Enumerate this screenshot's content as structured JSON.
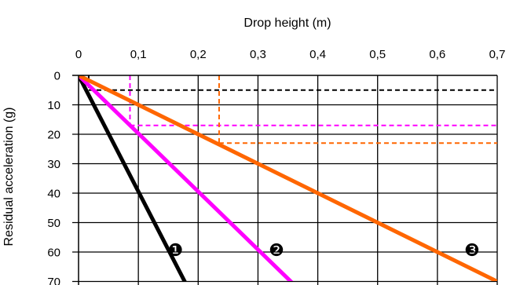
{
  "chart_data": {
    "type": "line",
    "xlabel": "Drop height (m)",
    "ylabel": "Residual acceleration (g)",
    "xlim": [
      0,
      0.7
    ],
    "ylim": [
      0,
      70
    ],
    "y_inverted": true,
    "x_axis_position": "top",
    "grid": true,
    "x_ticks": [
      "0",
      "0,1",
      "0,2",
      "0,3",
      "0,4",
      "0,5",
      "0,6",
      "0,7"
    ],
    "y_ticks": [
      "0",
      "10",
      "20",
      "30",
      "40",
      "50",
      "60",
      "70"
    ],
    "series": [
      {
        "label": "❶",
        "color": "#000000",
        "points": [
          [
            0,
            0
          ],
          [
            0.18,
            71
          ]
        ],
        "label_at": [
          0.162,
          59.2
        ]
      },
      {
        "label": "❷",
        "color": "#ff00ff",
        "points": [
          [
            0,
            0
          ],
          [
            0.36,
            71
          ]
        ],
        "label_at": [
          0.331,
          59.2
        ]
      },
      {
        "label": "❸",
        "color": "#ff6600",
        "points": [
          [
            0,
            0
          ],
          [
            0.7,
            70
          ]
        ],
        "label_at": [
          0.658,
          59.2
        ]
      }
    ],
    "reference_lines": [
      {
        "color": "#000000",
        "x": 0.017,
        "y": 5
      },
      {
        "color": "#ff00ff",
        "x": 0.086,
        "y": 17
      },
      {
        "color": "#ff6600",
        "x": 0.235,
        "y": 23
      }
    ]
  }
}
